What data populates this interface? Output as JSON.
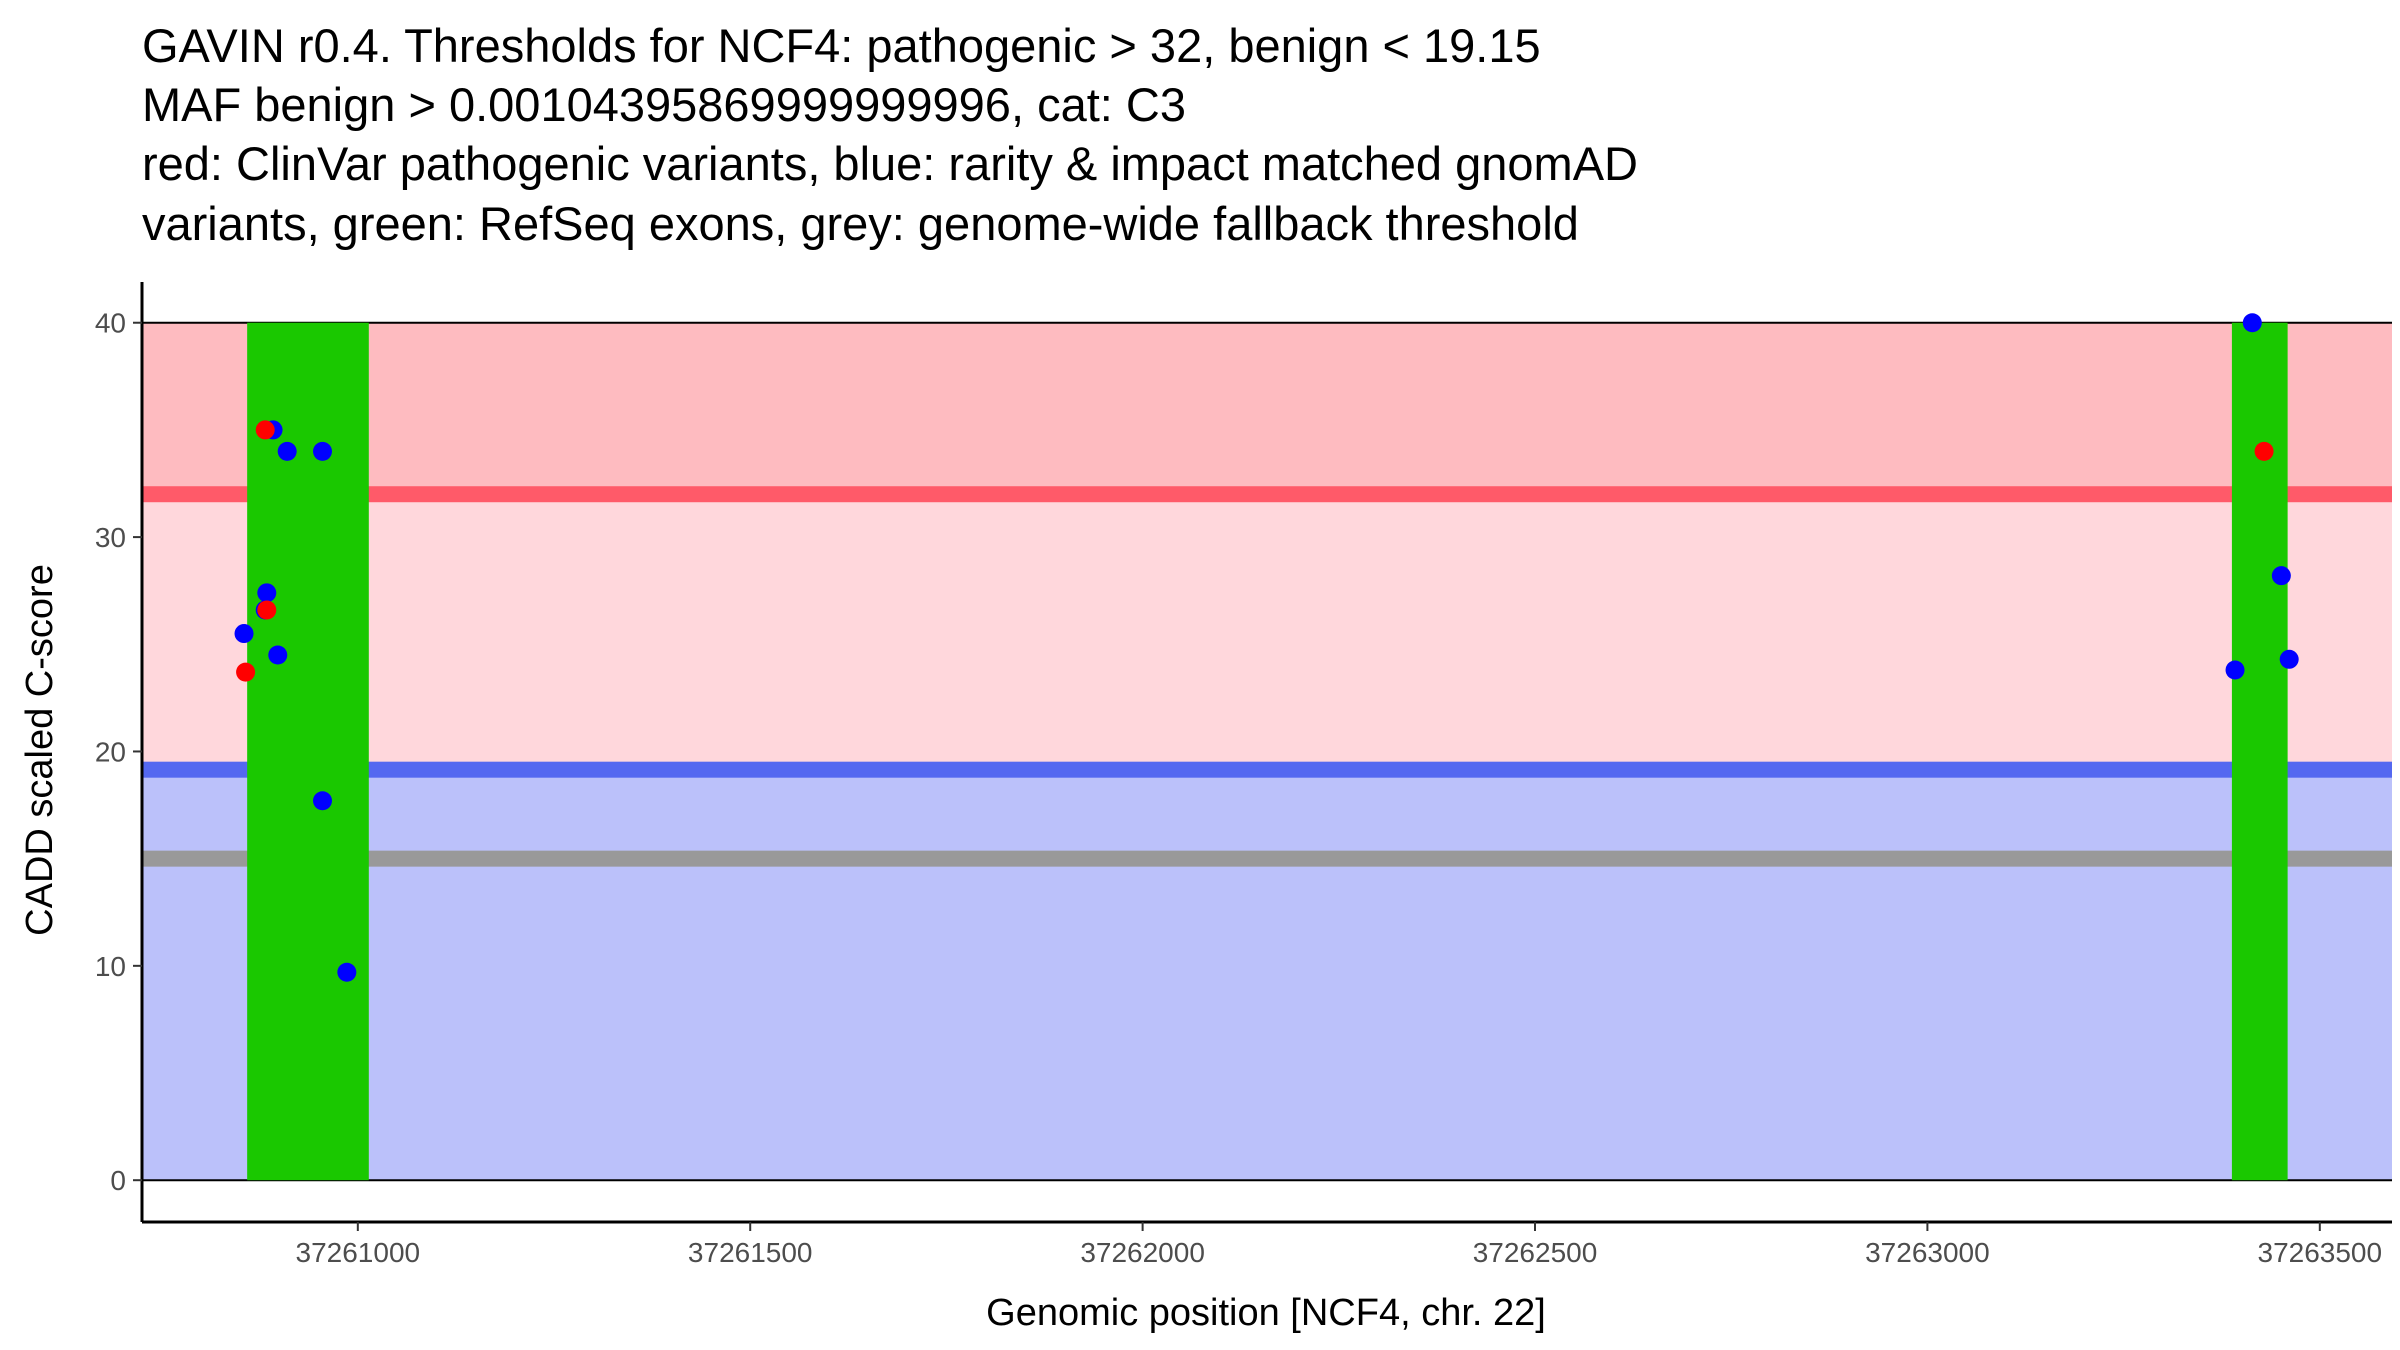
{
  "chart_data": {
    "type": "scatter",
    "title_lines": [
      "GAVIN r0.4. Thresholds for NCF4: pathogenic > 32, benign < 19.15",
      "MAF benign > 0.00104395869999999996, cat: C3",
      "red: ClinVar pathogenic variants, blue: rarity & impact matched gnomAD",
      "variants, green: RefSeq exons, grey: genome-wide fallback threshold"
    ],
    "xlabel": "Genomic position [NCF4, chr. 22]",
    "ylabel": "CADD scaled C-score",
    "xlim": [
      37260725,
      37263592
    ],
    "ylim": [
      -1.95,
      41.9
    ],
    "xticks": [
      37261000,
      37261500,
      37262000,
      37262500,
      37263000,
      37263500
    ],
    "xtick_labels": [
      "37261000",
      "37261500",
      "37262000",
      "37262500",
      "37263000",
      "37263500"
    ],
    "yticks": [
      0,
      10,
      20,
      30,
      40
    ],
    "ytick_labels": [
      "0",
      "10",
      "20",
      "30",
      "40"
    ],
    "grid": false,
    "thresholds": {
      "pathogenic": 32,
      "benign": 19.15,
      "fallback": 15,
      "max": 40
    },
    "colors": {
      "pathogenic_zone": "#FEBBC0",
      "vus_zone": "#FFD7DC",
      "benign_zone": "#BBC1FA",
      "pathogenic_line": "#FF5A69",
      "benign_line": "#5468F0",
      "fallback_line": "#999999",
      "exon": "#1AC800",
      "clinvar": "#FF0000",
      "gnomad": "#0000FF"
    },
    "exons": [
      [
        37260859,
        37261014
      ],
      [
        37263388,
        37263459
      ]
    ],
    "series": [
      {
        "name": "gnomAD",
        "color": "#0000FF",
        "points": [
          [
            37260855,
            25.5
          ],
          [
            37260884,
            27.4
          ],
          [
            37260882,
            26.6
          ],
          [
            37260892,
            35.0
          ],
          [
            37260910,
            34.0
          ],
          [
            37260955,
            34.0
          ],
          [
            37260898,
            24.5
          ],
          [
            37260955,
            17.7
          ],
          [
            37260986,
            9.7
          ],
          [
            37263414,
            40.0
          ],
          [
            37263451,
            28.2
          ],
          [
            37263461,
            24.3
          ],
          [
            37263392,
            23.8
          ]
        ]
      },
      {
        "name": "ClinVar",
        "color": "#FF0000",
        "points": [
          [
            37260882,
            35.0
          ],
          [
            37260884,
            26.6
          ],
          [
            37260857,
            23.7
          ],
          [
            37263429,
            34.0
          ]
        ]
      }
    ]
  }
}
